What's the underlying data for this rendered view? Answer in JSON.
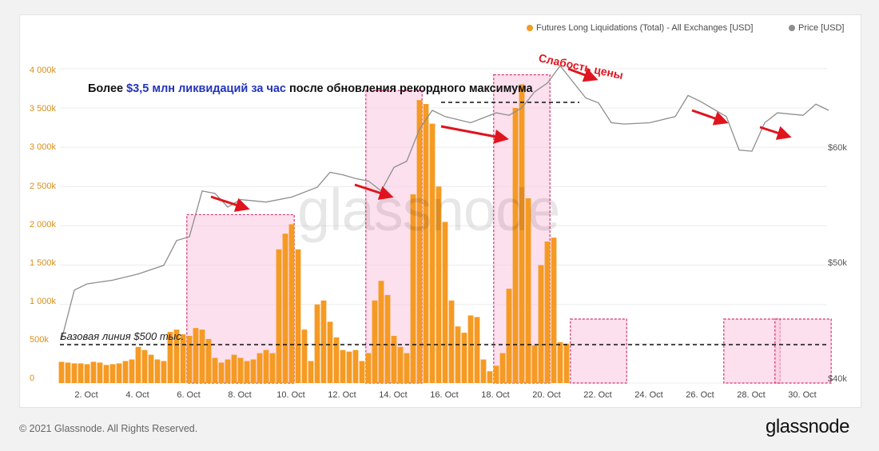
{
  "colors": {
    "liquidations": "#f59a23",
    "price": "#8e8e8e",
    "highlight_box": "#d6336c",
    "highlight_fill": "#f9c7df",
    "arrow": "#e0141e",
    "headline_accent": "#2233bb"
  },
  "legend": {
    "liquidations_label": "Futures Long Liquidations (Total) - All Exchanges [USD]",
    "price_label": "Price [USD]"
  },
  "annotations": {
    "headline_prefix": "Более ",
    "headline_highlight": "$3,5 млн ликвидаций за час",
    "headline_suffix": " после обновления рекордного максимума",
    "weakness_label": "Слабость цены",
    "baseline_label": "Базовая линия $500 тыс."
  },
  "watermark": "glassnode",
  "footer": {
    "copyright": "© 2021 Glassnode. All Rights Reserved.",
    "brand": "glassnode"
  },
  "chart_data": {
    "type": "bar",
    "title": "",
    "xlabel": "",
    "ylabel": "",
    "x_range": [
      "2021-10-01",
      "2021-10-31"
    ],
    "x_ticks": [
      "2. Oct",
      "4. Oct",
      "6. Oct",
      "8. Oct",
      "10. Oct",
      "12. Oct",
      "14. Oct",
      "16. Oct",
      "18. Oct",
      "20. Oct",
      "22. Oct",
      "24. Oct",
      "26. Oct",
      "28. Oct",
      "30. Oct"
    ],
    "y_left_ticks": [
      "0",
      "500k",
      "1 000k",
      "1 500k",
      "2 000k",
      "2 500k",
      "3 000k",
      "3 500k",
      "4 000k"
    ],
    "y_left_range": [
      0,
      4100000
    ],
    "y_right_ticks": [
      "$40k",
      "$50k",
      "$60k"
    ],
    "y_right_range": [
      40000,
      66000
    ],
    "baseline_value": 500000,
    "legend_position": "top-right",
    "series": [
      {
        "name": "Futures Long Liquidations (Total) - All Exchanges [USD]",
        "type": "bar",
        "x_start": "2021-10-01",
        "x_step_days": 0.25,
        "values": [
          270000,
          260000,
          250000,
          250000,
          240000,
          270000,
          260000,
          230000,
          240000,
          250000,
          280000,
          300000,
          460000,
          420000,
          360000,
          300000,
          280000,
          650000,
          680000,
          620000,
          600000,
          700000,
          680000,
          560000,
          320000,
          260000,
          300000,
          360000,
          320000,
          280000,
          300000,
          380000,
          420000,
          380000,
          1700000,
          1900000,
          2020000,
          1700000,
          680000,
          280000,
          1000000,
          1050000,
          780000,
          580000,
          420000,
          400000,
          420000,
          280000,
          380000,
          1050000,
          1300000,
          1120000,
          600000,
          460000,
          380000,
          2400000,
          3600000,
          3550000,
          3300000,
          2500000,
          2050000,
          1050000,
          720000,
          640000,
          860000,
          840000,
          300000,
          150000,
          220000,
          380000,
          1200000,
          3500000,
          3800000,
          2350000,
          480000,
          1500000,
          1800000,
          1850000,
          520000,
          500000
        ],
        "highlighted_windows": [
          [
            "2021-10-06",
            "2021-10-09"
          ],
          [
            "2021-10-13",
            "2021-10-14"
          ],
          [
            "2021-10-18",
            "2021-10-19"
          ],
          [
            "2021-10-21",
            "2021-10-22"
          ],
          [
            "2021-10-27",
            "2021-10-28"
          ],
          [
            "2021-10-29",
            "2021-10-30"
          ]
        ]
      },
      {
        "name": "Price [USD]",
        "type": "line",
        "axis": "right",
        "points": [
          [
            "2021-10-01",
            43500
          ],
          [
            "2021-10-01 12:00",
            47500
          ],
          [
            "2021-10-02",
            48000
          ],
          [
            "2021-10-03",
            48300
          ],
          [
            "2021-10-04",
            48800
          ],
          [
            "2021-10-05",
            49500
          ],
          [
            "2021-10-05 12:00",
            51500
          ],
          [
            "2021-10-06",
            51800
          ],
          [
            "2021-10-06 12:00",
            55500
          ],
          [
            "2021-10-07",
            55300
          ],
          [
            "2021-10-07 12:00",
            54200
          ],
          [
            "2021-10-08",
            54800
          ],
          [
            "2021-10-09",
            54600
          ],
          [
            "2021-10-10",
            55000
          ],
          [
            "2021-10-11",
            55800
          ],
          [
            "2021-10-11 12:00",
            57000
          ],
          [
            "2021-10-12",
            56800
          ],
          [
            "2021-10-12 12:00",
            56500
          ],
          [
            "2021-10-13",
            56300
          ],
          [
            "2021-10-13 12:00",
            55500
          ],
          [
            "2021-10-14",
            57400
          ],
          [
            "2021-10-14 12:00",
            57900
          ],
          [
            "2021-10-15",
            60500
          ],
          [
            "2021-10-15 12:00",
            62000
          ],
          [
            "2021-10-16",
            61500
          ],
          [
            "2021-10-17",
            61000
          ],
          [
            "2021-10-18",
            61800
          ],
          [
            "2021-10-18 12:00",
            61600
          ],
          [
            "2021-10-19",
            62200
          ],
          [
            "2021-10-19 12:00",
            63500
          ],
          [
            "2021-10-20",
            64200
          ],
          [
            "2021-10-20 12:00",
            65600
          ],
          [
            "2021-10-21",
            64300
          ],
          [
            "2021-10-21 12:00",
            63000
          ],
          [
            "2021-10-22",
            62600
          ],
          [
            "2021-10-22 12:00",
            61000
          ],
          [
            "2021-10-23",
            60900
          ],
          [
            "2021-10-24",
            61000
          ],
          [
            "2021-10-25",
            61500
          ],
          [
            "2021-10-25 12:00",
            63200
          ],
          [
            "2021-10-26",
            62700
          ],
          [
            "2021-10-27",
            61500
          ],
          [
            "2021-10-27 12:00",
            58800
          ],
          [
            "2021-10-28",
            58700
          ],
          [
            "2021-10-28 12:00",
            61000
          ],
          [
            "2021-10-29",
            61800
          ],
          [
            "2021-10-30",
            61600
          ],
          [
            "2021-10-30 12:00",
            62500
          ],
          [
            "2021-10-31",
            62000
          ]
        ]
      }
    ]
  }
}
